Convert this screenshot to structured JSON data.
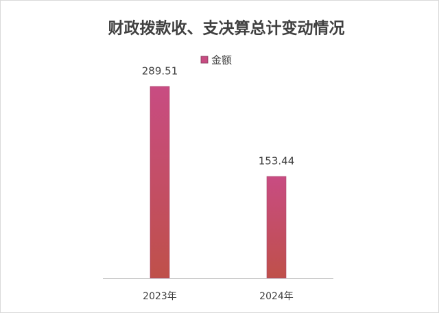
{
  "chart_data": {
    "type": "bar",
    "title": "财政拨款收、支决算总计变动情况",
    "categories": [
      "2023年",
      "2024年"
    ],
    "series": [
      {
        "name": "金额",
        "color": "#c84c82",
        "values": [
          289.51,
          153.44
        ]
      }
    ]
  }
}
